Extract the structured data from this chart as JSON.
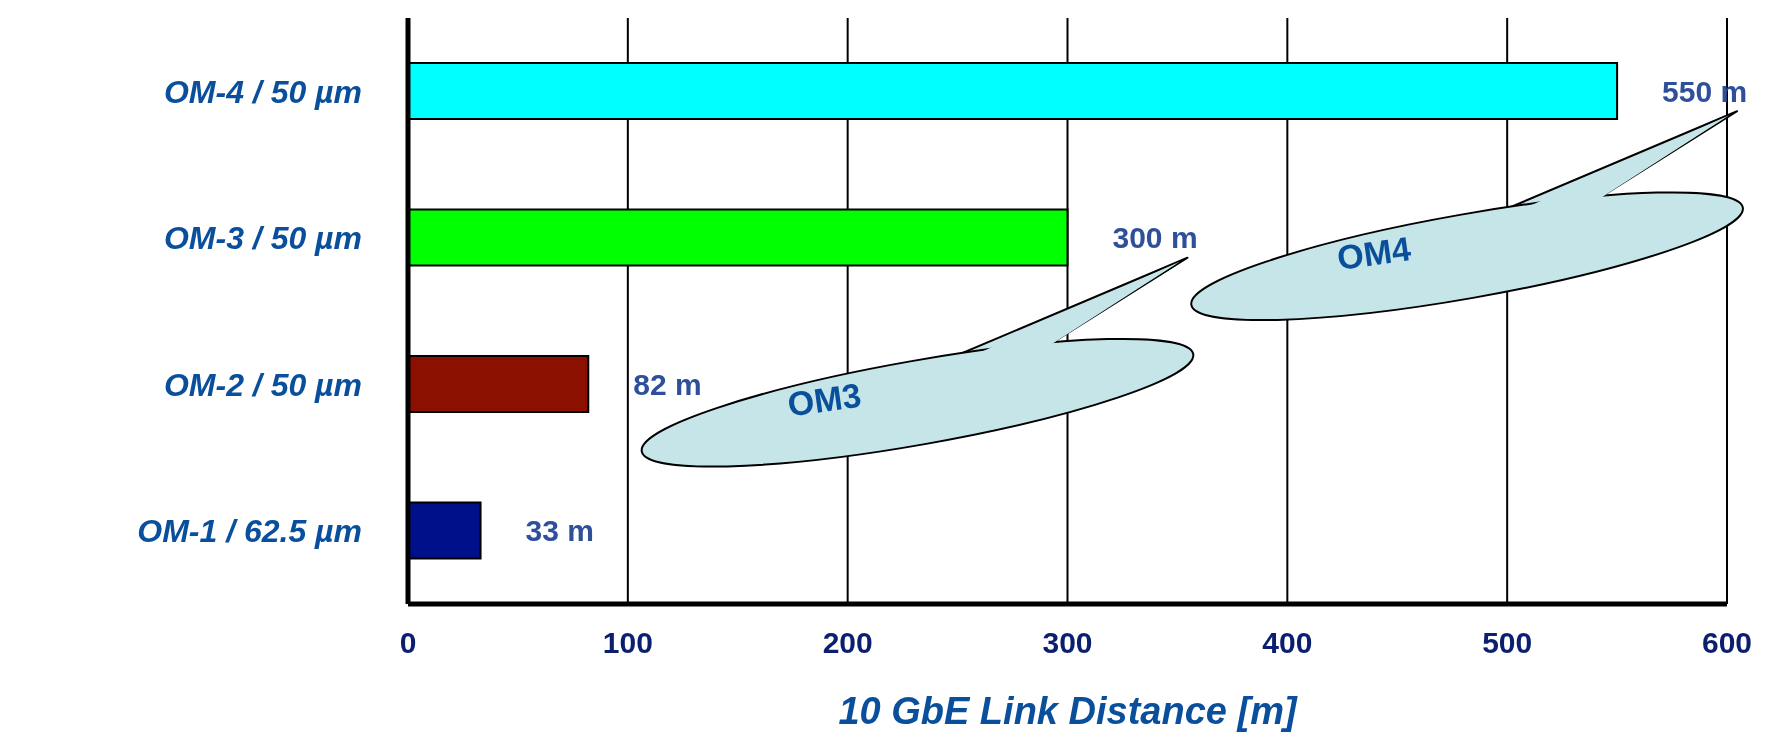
{
  "chart_data": {
    "type": "bar",
    "orientation": "horizontal",
    "xlabel": "10 GbE Link Distance [m]",
    "categories": [
      "OM-4 / 50 µm",
      "OM-3 / 50 µm",
      "OM-2 / 50 µm",
      "OM-1 / 62.5 µm"
    ],
    "values": [
      550,
      300,
      82,
      33
    ],
    "colors": [
      "#00ffff",
      "#00ff00",
      "#8b1000",
      "#00108b"
    ],
    "value_labels": [
      "550 m",
      "300 m",
      "82 m",
      "33 m"
    ],
    "xlim": [
      0,
      600
    ],
    "xticks": [
      0,
      100,
      200,
      300,
      400,
      500,
      600
    ],
    "grid": "x",
    "legend": false,
    "annotations": [
      "OM4",
      "OM3"
    ]
  }
}
